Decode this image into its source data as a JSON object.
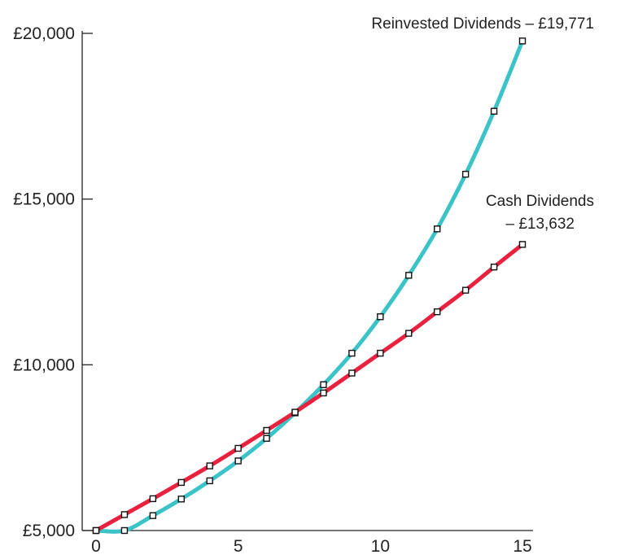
{
  "chart_data": {
    "type": "line",
    "title": "",
    "xlabel": "",
    "ylabel": "",
    "xlim": [
      0,
      15
    ],
    "ylim": [
      5000,
      20000
    ],
    "x_ticks": [
      "0",
      "5",
      "10",
      "15"
    ],
    "y_ticks": [
      "£5,000",
      "£10,000",
      "£15,000",
      "£20,000"
    ],
    "grid": false,
    "legend": "none",
    "x": [
      0,
      1,
      2,
      3,
      4,
      5,
      6,
      7,
      8,
      9,
      10,
      11,
      12,
      13,
      14,
      15
    ],
    "series": [
      {
        "key": "reinvested",
        "label_lines": [
          "Reinvested Dividends – £19,771"
        ],
        "color": "#3cc3c8",
        "values": [
          5000,
          5000,
          5450,
          5950,
          6500,
          7100,
          7780,
          8550,
          9400,
          10350,
          11450,
          12700,
          14100,
          15750,
          17650,
          19771
        ]
      },
      {
        "key": "cash",
        "label_lines": [
          "Cash Dividends",
          "– £13,632"
        ],
        "color": "#e8213f",
        "values": [
          5000,
          5480,
          5960,
          6450,
          6950,
          7480,
          8020,
          8570,
          9150,
          9750,
          10350,
          10950,
          11600,
          12250,
          12950,
          13632
        ]
      }
    ]
  }
}
